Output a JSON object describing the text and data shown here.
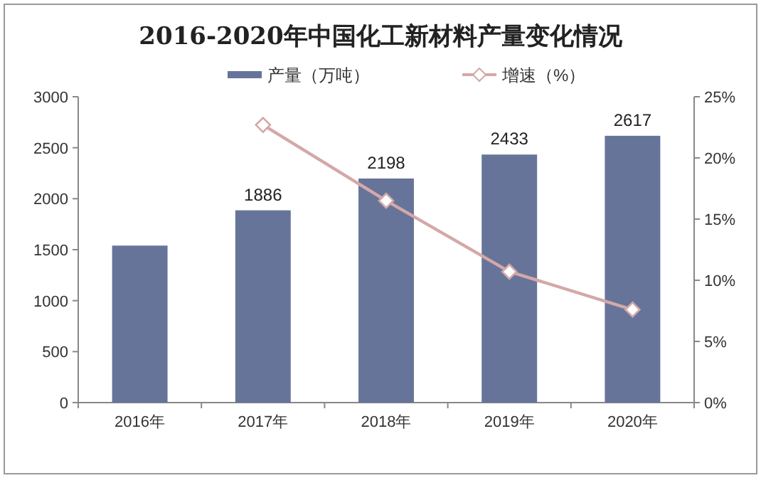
{
  "chart_data": {
    "type": "bar",
    "title": "2016-2020年中国化工新材料产量变化情况",
    "categories": [
      "2016年",
      "2017年",
      "2018年",
      "2019年",
      "2020年"
    ],
    "series": [
      {
        "name": "产量（万吨）",
        "color": "#67749a",
        "values": [
          1540,
          1886,
          2198,
          2433,
          2617
        ],
        "value_labels": [
          null,
          "1886",
          "2198",
          "2433",
          "2617"
        ]
      },
      {
        "name": "增速（%）",
        "type": "line",
        "axis": "y2",
        "color": "#d4a8a8",
        "marker": "diamond",
        "values": [
          null,
          22.7,
          16.5,
          10.7,
          7.6
        ]
      }
    ],
    "ylim": [
      0,
      3000
    ],
    "yticks": [
      0,
      500,
      1000,
      1500,
      2000,
      2500,
      3000
    ],
    "y2lim": [
      0,
      25
    ],
    "y2ticks": [
      {
        "value": 0,
        "label": "0%"
      },
      {
        "value": 5,
        "label": "5%"
      },
      {
        "value": 10,
        "label": "10%"
      },
      {
        "value": 15,
        "label": "15%"
      },
      {
        "value": 20,
        "label": "20%"
      },
      {
        "value": 25,
        "label": "25%"
      }
    ],
    "legend": "top",
    "grid": false
  }
}
